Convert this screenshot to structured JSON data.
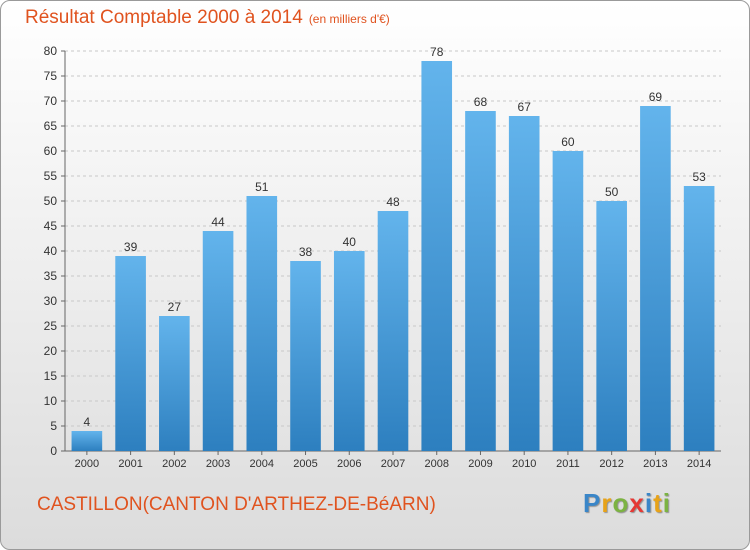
{
  "title": "Résultat Comptable 2000 à 2014",
  "subtitle": "(en milliers d'€)",
  "location": "CASTILLON(CANTON D'ARTHEZ-DE-BéARN)",
  "brand": {
    "text": "Proxiti",
    "letters": [
      {
        "ch": "P",
        "color": "#3a86c8"
      },
      {
        "ch": "r",
        "color": "#e8a318"
      },
      {
        "ch": "o",
        "color": "#7cb342"
      },
      {
        "ch": "x",
        "color": "#e53935"
      },
      {
        "ch": "i",
        "color": "#3a86c8"
      },
      {
        "ch": "t",
        "color": "#e8a318"
      },
      {
        "ch": "i",
        "color": "#7cb342"
      }
    ]
  },
  "colors": {
    "title": "#e0531f",
    "bar_top": "#63b4ec",
    "bar_bottom": "#2d7fbf",
    "grid": "#c8c8c8",
    "axis_text": "#333333"
  },
  "chart_data": {
    "type": "bar",
    "title": "Résultat Comptable 2000 à 2014",
    "subtitle": "(en milliers d'€)",
    "categories": [
      "2000",
      "2001",
      "2002",
      "2003",
      "2004",
      "2005",
      "2006",
      "2007",
      "2008",
      "2009",
      "2010",
      "2011",
      "2012",
      "2013",
      "2014"
    ],
    "values": [
      4,
      39,
      27,
      44,
      51,
      38,
      40,
      48,
      78,
      68,
      67,
      60,
      50,
      69,
      53
    ],
    "ylim": [
      0,
      80
    ],
    "yticks": [
      0,
      5,
      10,
      15,
      20,
      25,
      30,
      35,
      40,
      45,
      50,
      55,
      60,
      65,
      70,
      75,
      80
    ],
    "grid": true,
    "data_labels": true,
    "xlabel": "",
    "ylabel": ""
  }
}
